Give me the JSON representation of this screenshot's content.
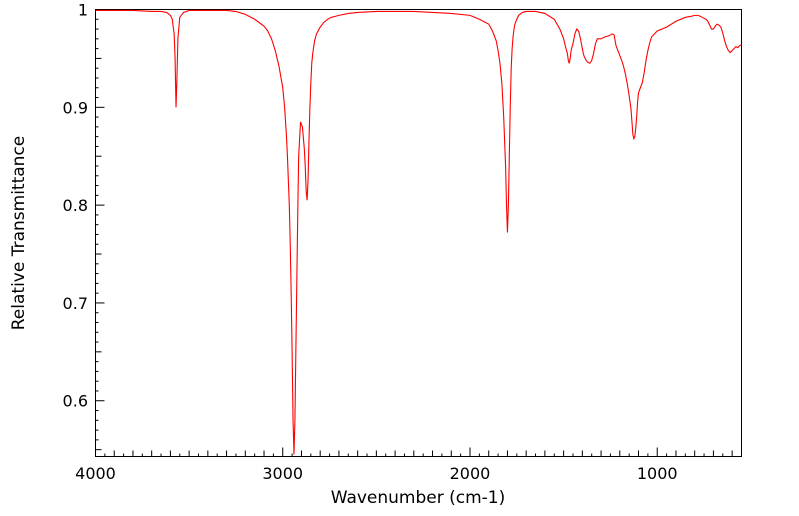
{
  "chart_data": {
    "type": "line",
    "title": "",
    "xlabel": "Wavenumber (cm-1)",
    "ylabel": "Relative Transmittance",
    "xlim": [
      4000,
      550
    ],
    "ylim": [
      0.543,
      1.0
    ],
    "x_reversed": true,
    "grid": false,
    "legend": "none",
    "x_ticks": [
      4000,
      3000,
      2000,
      1000
    ],
    "x_tick_labels": [
      "4000",
      "3000",
      "2000",
      "1000"
    ],
    "y_ticks": [
      1.0,
      0.9,
      0.8,
      0.7,
      0.6
    ],
    "y_tick_labels": [
      "1",
      "0.9",
      "0.8",
      "0.7",
      "0.6"
    ],
    "line_color": "#ff0000",
    "series": [
      {
        "x": [
          4000,
          3900,
          3800,
          3700,
          3650,
          3620,
          3600,
          3590,
          3580,
          3575,
          3570,
          3565,
          3560,
          3550,
          3530,
          3500,
          3400,
          3300,
          3250,
          3200,
          3150,
          3100,
          3080,
          3060,
          3040,
          3020,
          3000,
          2990,
          2980,
          2975,
          2970,
          2965,
          2960,
          2955,
          2950,
          2945,
          2940,
          2935,
          2930,
          2925,
          2920,
          2915,
          2905,
          2895,
          2885,
          2880,
          2875,
          2870,
          2865,
          2860,
          2855,
          2850,
          2845,
          2840,
          2830,
          2820,
          2800,
          2780,
          2760,
          2740,
          2720,
          2700,
          2650,
          2600,
          2500,
          2400,
          2300,
          2200,
          2100,
          2000,
          1950,
          1900,
          1880,
          1860,
          1850,
          1840,
          1830,
          1820,
          1810,
          1805,
          1800,
          1795,
          1790,
          1785,
          1780,
          1775,
          1770,
          1765,
          1760,
          1750,
          1740,
          1720,
          1700,
          1650,
          1600,
          1550,
          1520,
          1500,
          1490,
          1480,
          1475,
          1470,
          1465,
          1460,
          1455,
          1450,
          1440,
          1430,
          1420,
          1410,
          1400,
          1395,
          1390,
          1385,
          1380,
          1375,
          1370,
          1360,
          1350,
          1340,
          1330,
          1320,
          1300,
          1280,
          1260,
          1240,
          1230,
          1225,
          1220,
          1210,
          1200,
          1190,
          1180,
          1170,
          1160,
          1150,
          1140,
          1135,
          1130,
          1125,
          1120,
          1115,
          1110,
          1105,
          1100,
          1090,
          1080,
          1070,
          1060,
          1050,
          1040,
          1030,
          1000,
          950,
          900,
          850,
          820,
          800,
          780,
          760,
          740,
          730,
          720,
          710,
          700,
          690,
          680,
          670,
          660,
          650,
          640,
          630,
          620,
          610,
          600,
          590,
          580,
          570,
          560,
          550
        ],
        "y": [
          0.999,
          0.999,
          0.999,
          0.998,
          0.998,
          0.997,
          0.994,
          0.99,
          0.975,
          0.95,
          0.9,
          0.93,
          0.97,
          0.992,
          0.997,
          0.999,
          0.999,
          0.999,
          0.998,
          0.995,
          0.99,
          0.983,
          0.978,
          0.97,
          0.958,
          0.942,
          0.92,
          0.9,
          0.87,
          0.85,
          0.825,
          0.8,
          0.76,
          0.71,
          0.65,
          0.58,
          0.545,
          0.58,
          0.65,
          0.72,
          0.79,
          0.85,
          0.885,
          0.88,
          0.858,
          0.84,
          0.815,
          0.805,
          0.825,
          0.865,
          0.9,
          0.925,
          0.945,
          0.955,
          0.968,
          0.975,
          0.982,
          0.987,
          0.99,
          0.992,
          0.993,
          0.994,
          0.996,
          0.997,
          0.998,
          0.998,
          0.998,
          0.997,
          0.996,
          0.994,
          0.99,
          0.985,
          0.978,
          0.968,
          0.958,
          0.945,
          0.925,
          0.89,
          0.84,
          0.8,
          0.772,
          0.8,
          0.85,
          0.9,
          0.94,
          0.96,
          0.972,
          0.98,
          0.985,
          0.99,
          0.994,
          0.997,
          0.998,
          0.998,
          0.996,
          0.99,
          0.98,
          0.97,
          0.962,
          0.955,
          0.948,
          0.945,
          0.95,
          0.958,
          0.962,
          0.965,
          0.975,
          0.98,
          0.978,
          0.97,
          0.96,
          0.955,
          0.952,
          0.95,
          0.948,
          0.947,
          0.946,
          0.945,
          0.948,
          0.955,
          0.965,
          0.97,
          0.97,
          0.972,
          0.973,
          0.975,
          0.974,
          0.968,
          0.963,
          0.958,
          0.953,
          0.948,
          0.942,
          0.934,
          0.924,
          0.912,
          0.898,
          0.885,
          0.872,
          0.868,
          0.87,
          0.878,
          0.89,
          0.905,
          0.915,
          0.92,
          0.925,
          0.935,
          0.948,
          0.958,
          0.966,
          0.972,
          0.978,
          0.982,
          0.988,
          0.992,
          0.993,
          0.994,
          0.994,
          0.992,
          0.99,
          0.988,
          0.984,
          0.98,
          0.98,
          0.983,
          0.985,
          0.984,
          0.982,
          0.976,
          0.968,
          0.962,
          0.958,
          0.956,
          0.958,
          0.96,
          0.962,
          0.961,
          0.963,
          0.964
        ]
      }
    ]
  }
}
